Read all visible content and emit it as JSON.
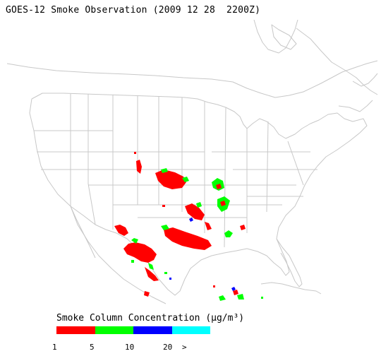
{
  "title": "GOES-12 Smoke Observation (2009 12 28  2200Z)",
  "legend": {
    "title": "Smoke Column Concentration (µg/m³)",
    "colors": [
      "#ff0000",
      "#00ff00",
      "#0000ff",
      "#00ffff"
    ],
    "ticks": [
      "1",
      "5",
      "10",
      "20",
      ">"
    ]
  },
  "map": {
    "region": "contiguous United States",
    "line_color": "#c8c8c8",
    "smoke_classes": [
      {
        "range": "1-5",
        "color": "#ff0000"
      },
      {
        "range": "5-10",
        "color": "#00ff00"
      },
      {
        "range": "10-20",
        "color": "#0000ff"
      },
      {
        "range": ">20",
        "color": "#00ffff"
      }
    ]
  }
}
